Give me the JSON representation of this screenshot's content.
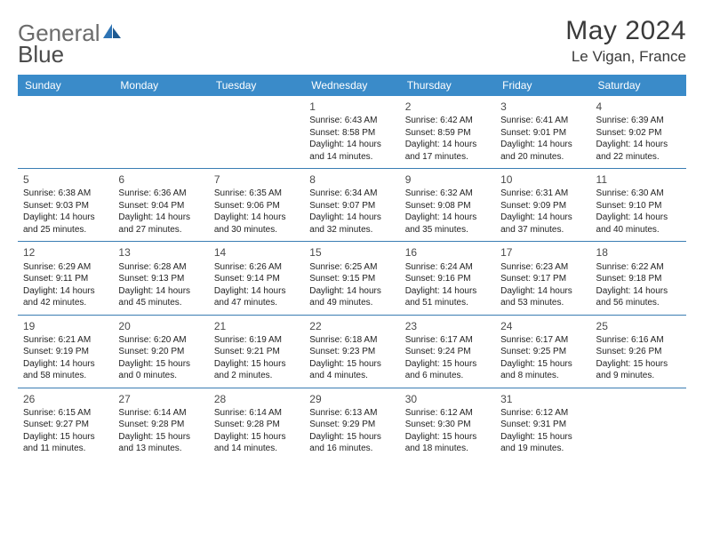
{
  "logo": {
    "text1": "General",
    "text2": "Blue"
  },
  "title": "May 2024",
  "location": "Le Vigan, France",
  "colors": {
    "header_bg": "#3a8bc9",
    "rule": "#3a7db3",
    "logo_accent": "#2e74b5"
  },
  "weekdays": [
    "Sunday",
    "Monday",
    "Tuesday",
    "Wednesday",
    "Thursday",
    "Friday",
    "Saturday"
  ],
  "weeks": [
    [
      {
        "day": "",
        "sunrise": "",
        "sunset": "",
        "daylight": ""
      },
      {
        "day": "",
        "sunrise": "",
        "sunset": "",
        "daylight": ""
      },
      {
        "day": "",
        "sunrise": "",
        "sunset": "",
        "daylight": ""
      },
      {
        "day": "1",
        "sunrise": "Sunrise: 6:43 AM",
        "sunset": "Sunset: 8:58 PM",
        "daylight": "Daylight: 14 hours and 14 minutes."
      },
      {
        "day": "2",
        "sunrise": "Sunrise: 6:42 AM",
        "sunset": "Sunset: 8:59 PM",
        "daylight": "Daylight: 14 hours and 17 minutes."
      },
      {
        "day": "3",
        "sunrise": "Sunrise: 6:41 AM",
        "sunset": "Sunset: 9:01 PM",
        "daylight": "Daylight: 14 hours and 20 minutes."
      },
      {
        "day": "4",
        "sunrise": "Sunrise: 6:39 AM",
        "sunset": "Sunset: 9:02 PM",
        "daylight": "Daylight: 14 hours and 22 minutes."
      }
    ],
    [
      {
        "day": "5",
        "sunrise": "Sunrise: 6:38 AM",
        "sunset": "Sunset: 9:03 PM",
        "daylight": "Daylight: 14 hours and 25 minutes."
      },
      {
        "day": "6",
        "sunrise": "Sunrise: 6:36 AM",
        "sunset": "Sunset: 9:04 PM",
        "daylight": "Daylight: 14 hours and 27 minutes."
      },
      {
        "day": "7",
        "sunrise": "Sunrise: 6:35 AM",
        "sunset": "Sunset: 9:06 PM",
        "daylight": "Daylight: 14 hours and 30 minutes."
      },
      {
        "day": "8",
        "sunrise": "Sunrise: 6:34 AM",
        "sunset": "Sunset: 9:07 PM",
        "daylight": "Daylight: 14 hours and 32 minutes."
      },
      {
        "day": "9",
        "sunrise": "Sunrise: 6:32 AM",
        "sunset": "Sunset: 9:08 PM",
        "daylight": "Daylight: 14 hours and 35 minutes."
      },
      {
        "day": "10",
        "sunrise": "Sunrise: 6:31 AM",
        "sunset": "Sunset: 9:09 PM",
        "daylight": "Daylight: 14 hours and 37 minutes."
      },
      {
        "day": "11",
        "sunrise": "Sunrise: 6:30 AM",
        "sunset": "Sunset: 9:10 PM",
        "daylight": "Daylight: 14 hours and 40 minutes."
      }
    ],
    [
      {
        "day": "12",
        "sunrise": "Sunrise: 6:29 AM",
        "sunset": "Sunset: 9:11 PM",
        "daylight": "Daylight: 14 hours and 42 minutes."
      },
      {
        "day": "13",
        "sunrise": "Sunrise: 6:28 AM",
        "sunset": "Sunset: 9:13 PM",
        "daylight": "Daylight: 14 hours and 45 minutes."
      },
      {
        "day": "14",
        "sunrise": "Sunrise: 6:26 AM",
        "sunset": "Sunset: 9:14 PM",
        "daylight": "Daylight: 14 hours and 47 minutes."
      },
      {
        "day": "15",
        "sunrise": "Sunrise: 6:25 AM",
        "sunset": "Sunset: 9:15 PM",
        "daylight": "Daylight: 14 hours and 49 minutes."
      },
      {
        "day": "16",
        "sunrise": "Sunrise: 6:24 AM",
        "sunset": "Sunset: 9:16 PM",
        "daylight": "Daylight: 14 hours and 51 minutes."
      },
      {
        "day": "17",
        "sunrise": "Sunrise: 6:23 AM",
        "sunset": "Sunset: 9:17 PM",
        "daylight": "Daylight: 14 hours and 53 minutes."
      },
      {
        "day": "18",
        "sunrise": "Sunrise: 6:22 AM",
        "sunset": "Sunset: 9:18 PM",
        "daylight": "Daylight: 14 hours and 56 minutes."
      }
    ],
    [
      {
        "day": "19",
        "sunrise": "Sunrise: 6:21 AM",
        "sunset": "Sunset: 9:19 PM",
        "daylight": "Daylight: 14 hours and 58 minutes."
      },
      {
        "day": "20",
        "sunrise": "Sunrise: 6:20 AM",
        "sunset": "Sunset: 9:20 PM",
        "daylight": "Daylight: 15 hours and 0 minutes."
      },
      {
        "day": "21",
        "sunrise": "Sunrise: 6:19 AM",
        "sunset": "Sunset: 9:21 PM",
        "daylight": "Daylight: 15 hours and 2 minutes."
      },
      {
        "day": "22",
        "sunrise": "Sunrise: 6:18 AM",
        "sunset": "Sunset: 9:23 PM",
        "daylight": "Daylight: 15 hours and 4 minutes."
      },
      {
        "day": "23",
        "sunrise": "Sunrise: 6:17 AM",
        "sunset": "Sunset: 9:24 PM",
        "daylight": "Daylight: 15 hours and 6 minutes."
      },
      {
        "day": "24",
        "sunrise": "Sunrise: 6:17 AM",
        "sunset": "Sunset: 9:25 PM",
        "daylight": "Daylight: 15 hours and 8 minutes."
      },
      {
        "day": "25",
        "sunrise": "Sunrise: 6:16 AM",
        "sunset": "Sunset: 9:26 PM",
        "daylight": "Daylight: 15 hours and 9 minutes."
      }
    ],
    [
      {
        "day": "26",
        "sunrise": "Sunrise: 6:15 AM",
        "sunset": "Sunset: 9:27 PM",
        "daylight": "Daylight: 15 hours and 11 minutes."
      },
      {
        "day": "27",
        "sunrise": "Sunrise: 6:14 AM",
        "sunset": "Sunset: 9:28 PM",
        "daylight": "Daylight: 15 hours and 13 minutes."
      },
      {
        "day": "28",
        "sunrise": "Sunrise: 6:14 AM",
        "sunset": "Sunset: 9:28 PM",
        "daylight": "Daylight: 15 hours and 14 minutes."
      },
      {
        "day": "29",
        "sunrise": "Sunrise: 6:13 AM",
        "sunset": "Sunset: 9:29 PM",
        "daylight": "Daylight: 15 hours and 16 minutes."
      },
      {
        "day": "30",
        "sunrise": "Sunrise: 6:12 AM",
        "sunset": "Sunset: 9:30 PM",
        "daylight": "Daylight: 15 hours and 18 minutes."
      },
      {
        "day": "31",
        "sunrise": "Sunrise: 6:12 AM",
        "sunset": "Sunset: 9:31 PM",
        "daylight": "Daylight: 15 hours and 19 minutes."
      },
      {
        "day": "",
        "sunrise": "",
        "sunset": "",
        "daylight": ""
      }
    ]
  ]
}
